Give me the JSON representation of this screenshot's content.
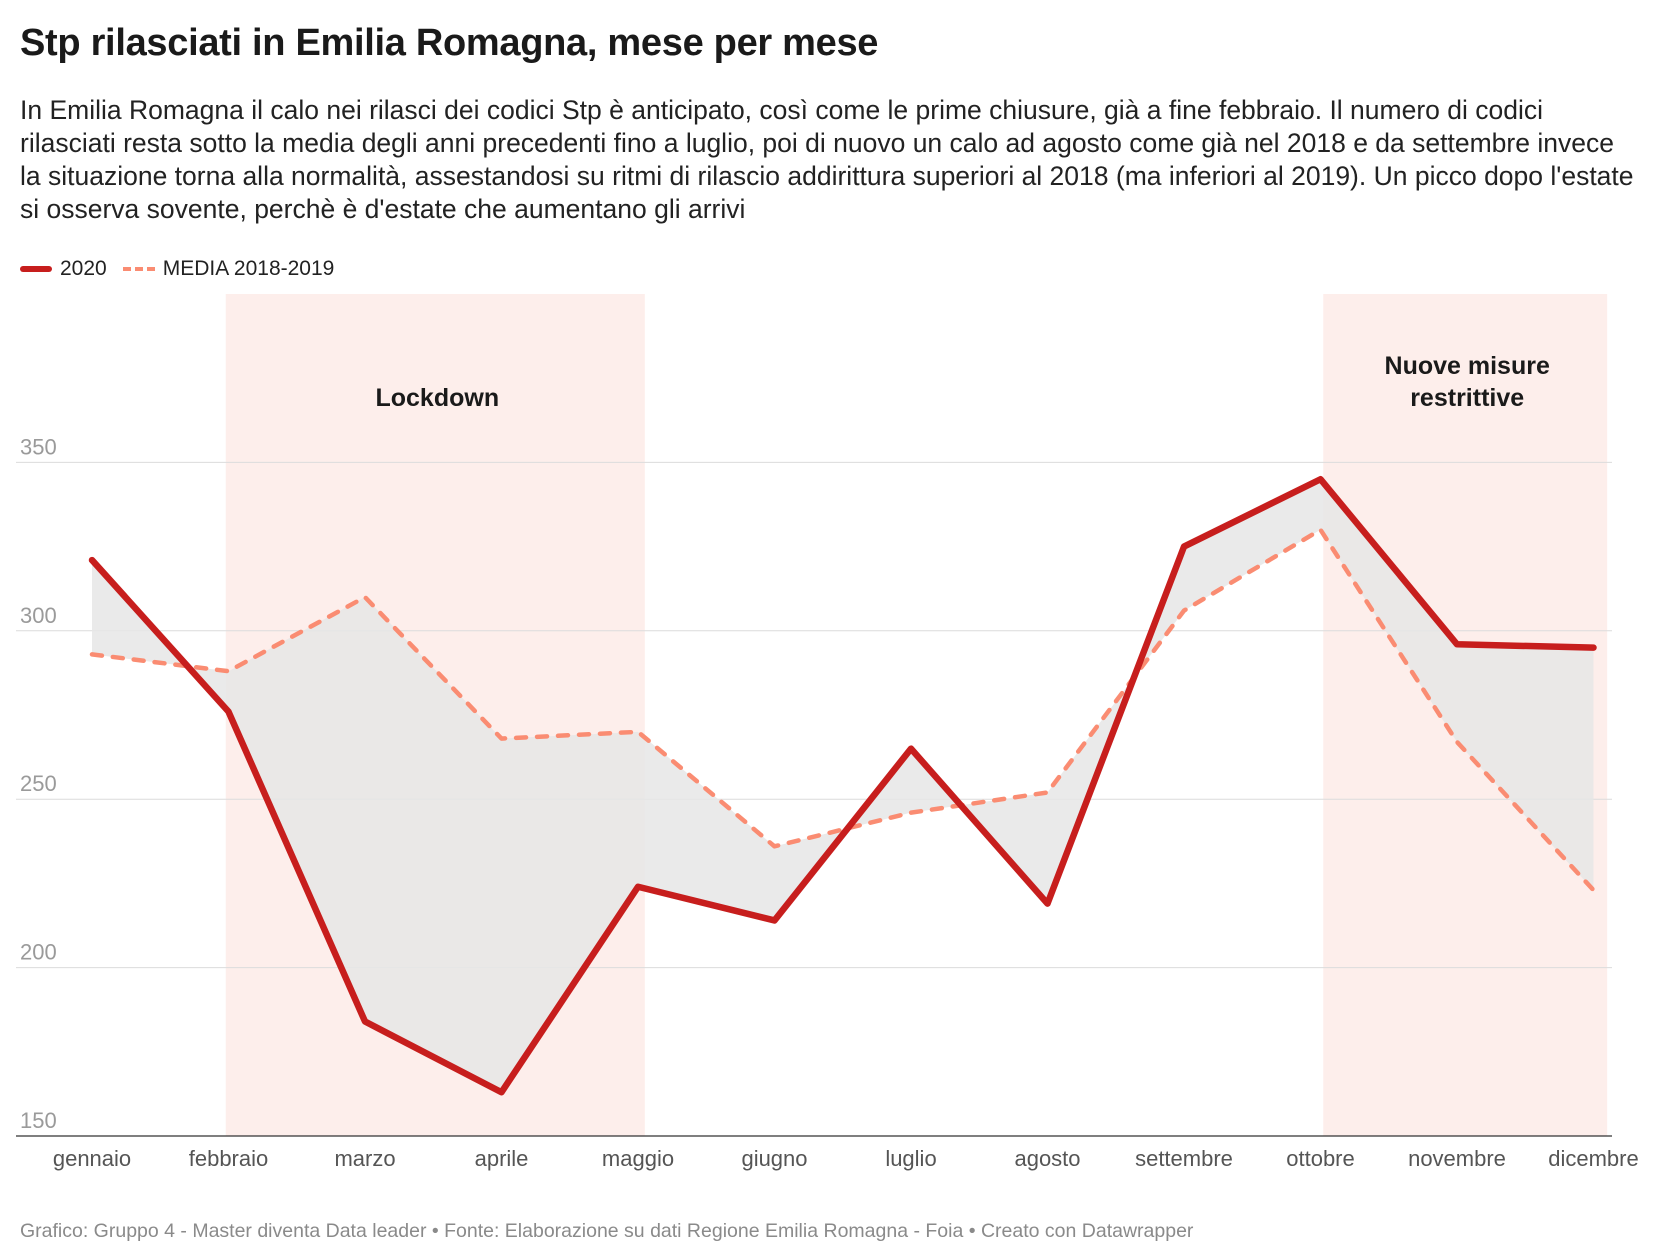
{
  "header": {
    "title": "Stp rilasciati in Emilia Romagna, mese per mese",
    "subtitle": "In Emilia Romagna il calo nei rilasci dei codici Stp è anticipato, così come le prime chiusure, già a fine febbraio. Il numero di codici rilasciati resta sotto la media degli anni precedenti fino a luglio, poi di nuovo un calo ad agosto come già nel 2018 e da settembre invece la situazione torna alla normalità, assestandosi su ritmi di rilascio addirittura superiori al 2018 (ma inferiori al 2019). Un picco dopo l'estate si osserva sovente, perchè è d'estate che aumentano gli arrivi"
  },
  "legend": [
    {
      "label": "2020",
      "color": "#c71e1d",
      "style": "solid"
    },
    {
      "label": "MEDIA 2018-2019",
      "color": "#fa8c72",
      "style": "dashed"
    }
  ],
  "footer": "Grafico: Gruppo 4 - Master diventa Data leader • Fonte: Elaborazione su dati Regione Emilia Romagna - Foia • Creato con Datawrapper",
  "chart_data": {
    "type": "line",
    "title": "Stp rilasciati in Emilia Romagna, mese per mese",
    "categories": [
      "gennaio",
      "febbraio",
      "marzo",
      "aprile",
      "maggio",
      "giugno",
      "luglio",
      "agosto",
      "settembre",
      "ottobre",
      "novembre",
      "dicembre"
    ],
    "series": [
      {
        "name": "2020",
        "values": [
          321,
          276,
          184,
          163,
          224,
          214,
          265,
          219,
          325,
          345,
          296,
          295
        ],
        "color": "#c71e1d",
        "style": "solid"
      },
      {
        "name": "MEDIA 2018-2019",
        "values": [
          293,
          288,
          310,
          268,
          270,
          236,
          246,
          252,
          306,
          330,
          267,
          223
        ],
        "color": "#fa8c72",
        "style": "dashed"
      }
    ],
    "yticks": [
      150,
      200,
      250,
      300,
      350
    ],
    "ylim": [
      150,
      400
    ],
    "xlabel": "",
    "ylabel": "",
    "grid": true,
    "difference_fill": "#e6e6e6",
    "bands": [
      {
        "label": "Lockdown",
        "from": 0.98,
        "to": 4.05,
        "color": "#fdeeeb"
      },
      {
        "label": "Nuove misure restrittive",
        "from": 9.02,
        "to": 11.1,
        "color": "#fdeeeb"
      }
    ]
  }
}
